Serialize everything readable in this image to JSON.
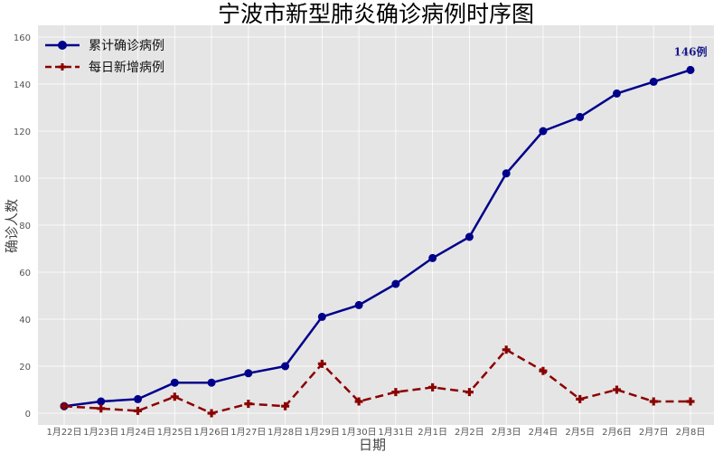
{
  "chart_data": {
    "type": "line",
    "title": "宁波市新型肺炎确诊病例时序图",
    "xlabel": "日期",
    "ylabel": "确诊人数",
    "categories": [
      "1月22日",
      "1月23日",
      "1月24日",
      "1月25日",
      "1月26日",
      "1月27日",
      "1月28日",
      "1月29日",
      "1月30日",
      "1月31日",
      "2月1日",
      "2月2日",
      "2月3日",
      "2月4日",
      "2月5日",
      "2月6日",
      "2月7日",
      "2月8日"
    ],
    "series": [
      {
        "name": "累计确诊病例",
        "color": "#00008b",
        "marker": "circle",
        "line_style": "solid",
        "values": [
          3,
          5,
          6,
          13,
          13,
          17,
          20,
          41,
          46,
          55,
          66,
          75,
          102,
          120,
          126,
          136,
          141,
          146
        ]
      },
      {
        "name": "每日新增病例",
        "color": "#8b0000",
        "marker": "plus",
        "line_style": "dashed",
        "values": [
          3,
          2,
          1,
          7,
          0,
          4,
          3,
          21,
          5,
          9,
          11,
          9,
          27,
          18,
          6,
          10,
          5,
          5
        ]
      }
    ],
    "ylim": [
      -5,
      165
    ],
    "yticks": [
      0,
      20,
      40,
      60,
      80,
      100,
      120,
      140,
      160
    ],
    "grid": true,
    "legend_position": "top-left",
    "annotations": [
      {
        "text": "146例",
        "category": "2月8日",
        "series": "累计确诊病例"
      }
    ]
  }
}
